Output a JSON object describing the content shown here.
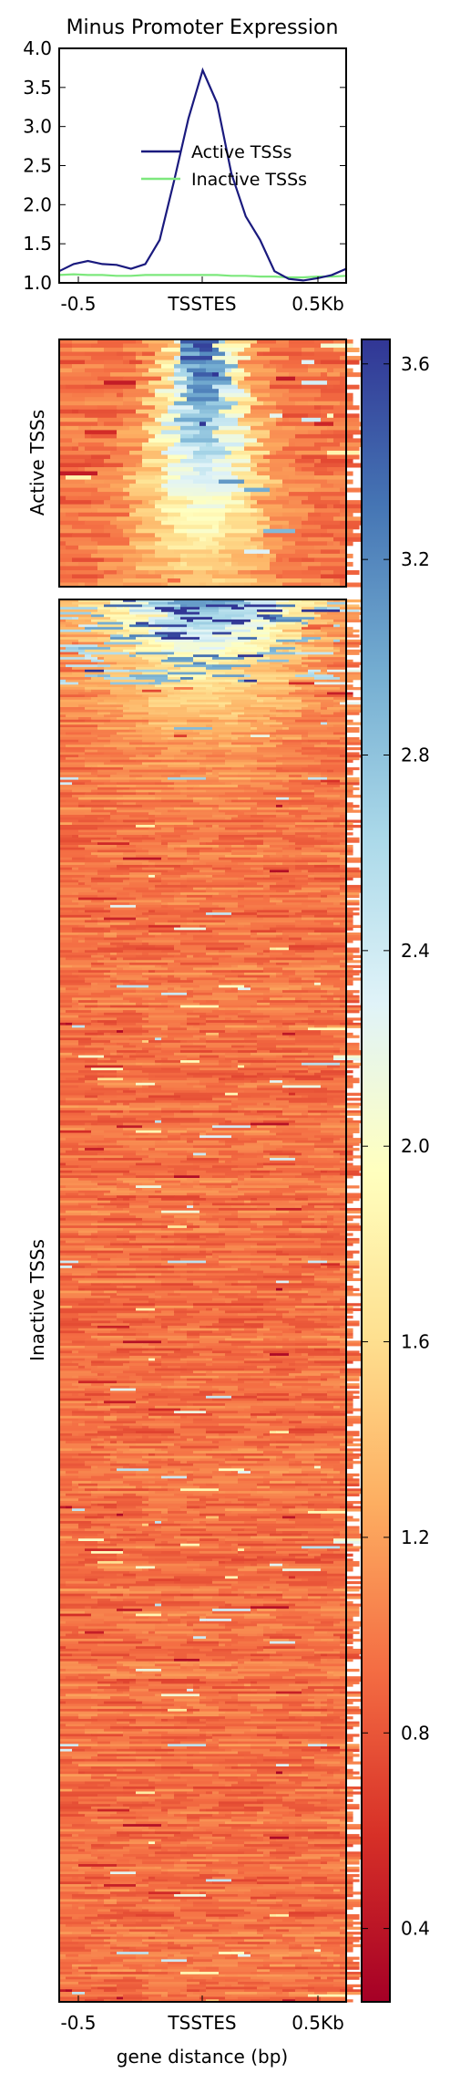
{
  "chart_data": [
    {
      "type": "line",
      "title": "Minus Promoter Expression",
      "xlabel": "",
      "ylabel": "",
      "ylim": [
        1.0,
        4.0
      ],
      "yticks": [
        "1.0",
        "1.5",
        "2.0",
        "2.5",
        "3.0",
        "3.5",
        "4.0"
      ],
      "xtick_labels": [
        "-0.5",
        "TSSTES",
        "0.5Kb"
      ],
      "legend": {
        "placement": "center-right",
        "entries": [
          "Active TSSs",
          "Inactive TSSs"
        ]
      },
      "x": [
        -0.5,
        -0.45,
        -0.4,
        -0.35,
        -0.3,
        -0.25,
        -0.2,
        -0.15,
        -0.1,
        -0.05,
        0.0,
        0.05,
        0.1,
        0.15,
        0.2,
        0.25,
        0.3,
        0.35,
        0.4,
        0.45,
        0.5
      ],
      "series": [
        {
          "name": "Active TSSs",
          "color": "#1a1a7e",
          "values": [
            1.15,
            1.24,
            1.28,
            1.24,
            1.23,
            1.18,
            1.24,
            1.55,
            2.3,
            3.1,
            3.72,
            3.3,
            2.4,
            1.85,
            1.55,
            1.15,
            1.05,
            1.03,
            1.06,
            1.1,
            1.18
          ]
        },
        {
          "name": "Inactive TSSs",
          "color": "#7de87d",
          "values": [
            1.1,
            1.11,
            1.1,
            1.1,
            1.09,
            1.09,
            1.1,
            1.1,
            1.1,
            1.1,
            1.1,
            1.1,
            1.09,
            1.09,
            1.08,
            1.08,
            1.07,
            1.07,
            1.08,
            1.08,
            1.09
          ]
        }
      ]
    },
    {
      "type": "heatmap",
      "groups": [
        {
          "label": "Active TSSs",
          "rows": 60
        },
        {
          "label": "Inactive TSSs",
          "rows": 560
        }
      ],
      "xtick_labels": [
        "-0.5",
        "TSSTES",
        "0.5Kb"
      ],
      "xlabel": "gene distance (bp)",
      "colorbar": {
        "min": 0.25,
        "max": 3.65,
        "ticks": [
          "0.4",
          "0.8",
          "1.2",
          "1.6",
          "2.0",
          "2.4",
          "2.8",
          "3.2",
          "3.6"
        ],
        "colormap": "RdYlBu",
        "colors": [
          "#a50026",
          "#d73027",
          "#f46d43",
          "#fdae61",
          "#fee090",
          "#ffffbf",
          "#e0f3f8",
          "#abd9e9",
          "#74add1",
          "#4575b4",
          "#313695"
        ]
      },
      "background_level": 0.95,
      "active_peak_level": 3.6,
      "inactive_peak_level": 3.2
    }
  ]
}
